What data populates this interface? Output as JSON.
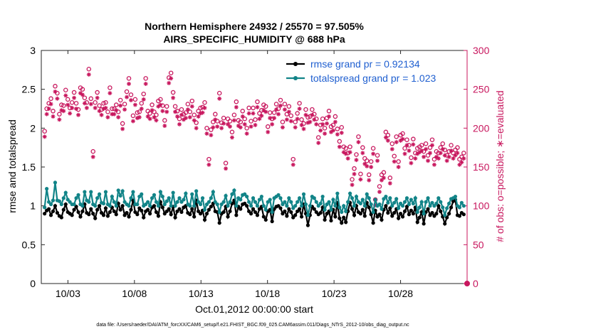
{
  "chart_data": {
    "type": "line",
    "title_line1": "Northern Hemisphere 24932 / 25570 = 97.505%",
    "title_line2": "AIRS_SPECIFIC_HUMIDITY @ 688 hPa",
    "xlabel": "Oct.01,2012 00:00:00 start",
    "ylabel_left": "rmse and totalspread",
    "ylabel_right": "# of obs: o=possible; ∗=evaluated",
    "ylim_left": [
      0,
      3
    ],
    "ylim_right": [
      0,
      300
    ],
    "xlim": [
      1,
      33
    ],
    "yticks_left": [
      "0",
      "0.5",
      "1",
      "1.5",
      "2",
      "2.5",
      "3"
    ],
    "yticks_right": [
      "0",
      "50",
      "100",
      "150",
      "200",
      "250",
      "300"
    ],
    "xticks": [
      {
        "pos": 3,
        "label": "10/03"
      },
      {
        "pos": 8,
        "label": "10/08"
      },
      {
        "pos": 13,
        "label": "10/13"
      },
      {
        "pos": 18,
        "label": "10/18"
      },
      {
        "pos": 23,
        "label": "10/23"
      },
      {
        "pos": 28,
        "label": "10/28"
      }
    ],
    "legend_position": "top-right",
    "series": [
      {
        "name": "rmse grand pr = 0.92134",
        "color": "#000000",
        "axis": "left",
        "values": [
          0.9,
          0.94,
          0.96,
          0.88,
          0.93,
          1.0,
          0.91,
          0.87,
          0.85,
          0.95,
          1.02,
          0.92,
          0.9,
          0.88,
          0.95,
          0.99,
          0.92,
          0.86,
          0.93,
          1.02,
          0.91,
          0.89,
          0.96,
          0.9,
          0.84,
          0.95,
          1.0,
          0.91,
          0.88,
          0.97,
          0.87,
          0.92,
          0.98,
          0.93,
          0.89,
          1.03,
          0.95,
          1.0,
          0.88,
          0.91,
          0.86,
          0.95,
          1.07,
          0.92,
          0.89,
          0.97,
          0.94,
          0.85,
          0.93,
          0.95,
          0.9,
          0.98,
          1.0,
          0.92,
          0.87,
          1.05,
          0.98,
          0.9,
          0.93,
          0.96,
          0.89,
          0.99,
          0.85,
          0.93,
          0.96,
          0.92,
          0.98,
          1.0,
          0.91,
          0.89,
          0.96,
          0.86,
          1.07,
          0.93,
          0.9,
          0.94,
          0.82,
          0.9,
          0.95,
          0.99,
          1.03,
          0.93,
          0.92,
          0.78,
          0.9,
          0.92,
          0.99,
          0.86,
          0.93,
          1.03,
          1.07,
          0.88,
          0.99,
          0.96,
          1.02,
          1.03,
          1.0,
          0.93,
          0.9,
          0.96,
          0.92,
          0.88,
          0.96,
          0.99,
          0.86,
          0.82,
          0.93,
          0.95,
          0.8,
          0.96,
          0.99,
          1.0,
          0.97,
          0.9,
          0.93,
          0.87,
          0.96,
          0.92,
          0.85,
          0.88,
          0.93,
          0.96,
          0.86,
          1.02,
          0.9,
          0.75,
          0.88,
          0.99,
          0.96,
          0.92,
          0.89,
          0.91,
          0.98,
          0.82,
          0.9,
          0.93,
          0.81,
          0.95,
          0.86,
          1.04,
          0.84,
          0.78,
          0.85,
          0.79,
          0.93,
          1.04,
          0.96,
          0.88,
          1.0,
          0.92,
          0.9,
          0.95,
          0.87,
          1.04,
          0.98,
          0.89,
          0.78,
          0.94,
          0.86,
          0.89,
          0.82,
          0.95,
          1.0,
          0.91,
          0.97,
          0.87,
          0.91,
          0.96,
          0.84,
          0.9,
          0.86,
          0.93,
          0.99,
          0.89,
          0.94,
          0.9,
          0.98,
          0.79,
          0.85,
          0.92,
          0.77,
          0.92,
          0.96,
          0.88,
          0.91,
          0.87,
          0.9,
          1.0,
          0.93,
          0.86,
          0.77,
          0.85,
          0.9,
          0.98,
          1.06,
          1.08,
          0.88,
          0.87,
          0.91,
          0.89
        ]
      },
      {
        "name": "totalspread grand pr = 1.023",
        "color": "#128488",
        "axis": "left",
        "values": [
          0.98,
          1.22,
          1.05,
          1.02,
          1.07,
          1.3,
          1.07,
          1.06,
          1.02,
          1.1,
          1.17,
          1.08,
          1.05,
          1.02,
          1.02,
          1.1,
          1.14,
          1.02,
          1.0,
          1.18,
          1.07,
          1.05,
          1.18,
          1.02,
          1.0,
          1.1,
          1.15,
          1.04,
          1.03,
          1.18,
          1.02,
          1.0,
          1.12,
          1.05,
          1.0,
          1.2,
          1.13,
          1.19,
          1.05,
          1.02,
          1.0,
          1.1,
          1.18,
          1.02,
          1.02,
          1.12,
          1.15,
          1.0,
          1.02,
          1.05,
          1.0,
          1.1,
          1.14,
          1.05,
          1.0,
          1.18,
          1.12,
          1.02,
          1.06,
          1.1,
          1.0,
          1.17,
          1.0,
          1.05,
          1.1,
          1.05,
          1.08,
          1.16,
          1.02,
          1.0,
          1.15,
          1.0,
          1.19,
          1.05,
          1.02,
          1.1,
          0.95,
          1.02,
          1.05,
          1.1,
          1.18,
          1.05,
          1.02,
          0.92,
          1.02,
          1.05,
          1.13,
          1.0,
          1.05,
          1.15,
          1.2,
          1.0,
          1.1,
          1.08,
          1.14,
          1.15,
          1.12,
          1.05,
          1.0,
          1.1,
          1.05,
          1.0,
          1.08,
          1.12,
          1.0,
          0.95,
          1.05,
          1.08,
          0.92,
          1.1,
          1.12,
          1.14,
          1.1,
          1.02,
          1.05,
          1.0,
          1.1,
          1.05,
          0.97,
          1.0,
          1.05,
          1.1,
          1.0,
          1.15,
          1.02,
          0.88,
          1.0,
          1.12,
          1.1,
          1.05,
          1.0,
          1.03,
          1.12,
          0.95,
          1.02,
          1.05,
          0.95,
          1.08,
          1.0,
          1.16,
          0.98,
          0.92,
          1.0,
          0.93,
          1.05,
          1.16,
          1.1,
          1.0,
          1.12,
          1.05,
          1.03,
          1.08,
          1.0,
          1.15,
          1.1,
          1.02,
          0.92,
          1.08,
          1.0,
          1.02,
          0.96,
          1.09,
          1.12,
          1.04,
          1.1,
          1.0,
          1.04,
          1.09,
          0.97,
          1.03,
          1.0,
          1.05,
          1.1,
          1.02,
          1.08,
          1.03,
          1.1,
          0.92,
          0.98,
          1.05,
          0.9,
          1.05,
          1.1,
          1.0,
          1.04,
          1.0,
          1.03,
          1.1,
          1.05,
          0.98,
          0.88,
          0.97,
          1.03,
          1.09,
          1.1,
          1.12,
          1.0,
          0.98,
          1.04,
          1.0
        ]
      }
    ],
    "counts": {
      "possible_color": "#c8175e",
      "evaluated_color": "#c8175e",
      "possible": [
        196,
        225,
        232,
        238,
        222,
        254,
        245,
        218,
        230,
        229,
        249,
        237,
        226,
        233,
        246,
        232,
        224,
        252,
        250,
        239,
        233,
        276,
        238,
        170,
        233,
        246,
        229,
        224,
        232,
        233,
        221,
        252,
        225,
        225,
        230,
        221,
        236,
        206,
        231,
        247,
        264,
        243,
        216,
        237,
        220,
        221,
        232,
        244,
        264,
        222,
        219,
        230,
        221,
        217,
        235,
        237,
        229,
        210,
        228,
        265,
        271,
        246,
        228,
        222,
        212,
        224,
        218,
        220,
        231,
        221,
        235,
        217,
        207,
        222,
        226,
        227,
        233,
        200,
        160,
        198,
        208,
        218,
        209,
        245,
        207,
        213,
        155,
        212,
        209,
        195,
        217,
        234,
        210,
        208,
        222,
        212,
        200,
        226,
        209,
        226,
        211,
        234,
        219,
        223,
        230,
        228,
        202,
        220,
        212,
        220,
        231,
        225,
        236,
        208,
        231,
        218,
        228,
        216,
        160,
        208,
        219,
        232,
        211,
        206,
        224,
        214,
        215,
        224,
        218,
        212,
        188,
        204,
        212,
        200,
        213,
        222,
        202,
        204,
        215,
        199,
        183,
        201,
        176,
        174,
        168,
        176,
        134,
        148,
        166,
        189,
        141,
        175,
        161,
        158,
        140,
        157,
        174,
        108,
        165,
        125,
        140,
        143,
        195,
        191,
        136,
        180,
        164,
        189,
        157,
        191,
        193,
        174,
        185,
        178,
        162,
        186,
        168,
        174,
        176,
        178,
        170,
        180,
        165,
        175,
        185,
        160,
        170,
        168,
        175,
        180,
        172,
        165,
        170,
        178,
        168,
        172,
        175,
        160,
        163,
        168
      ]
    }
  },
  "footnote": "data file: /Users/raeder/DAI/ATM_forcXX/CAM6_setup/f.e21.FHIST_BGC.f09_025.CAM6assim.011/Diags_NTrS_2012-10/obs_diag_output.nc"
}
